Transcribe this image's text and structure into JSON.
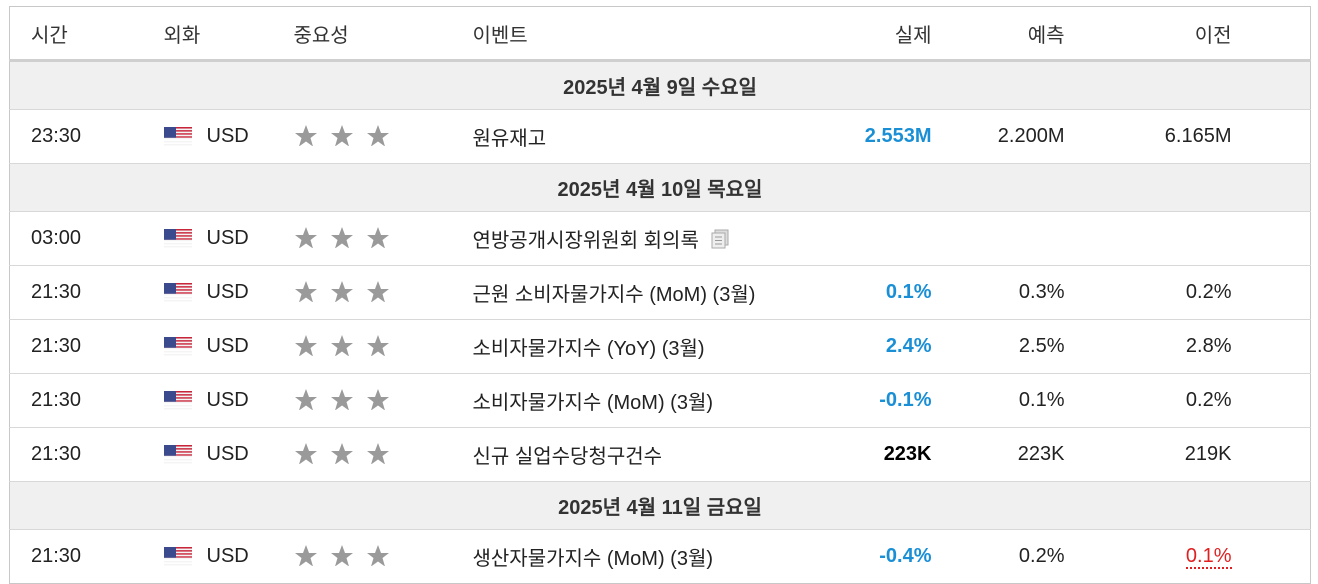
{
  "header": {
    "columns": [
      "시간",
      "외화",
      "중요성",
      "이벤트",
      "실제",
      "예측",
      "이전"
    ]
  },
  "groups": [
    {
      "date": "2025년 4월 9일 수요일",
      "events": [
        {
          "time": "23:30",
          "currency": "USD",
          "event": "원유재고",
          "actual": "2.553M",
          "actual_color": "#1a8fd6",
          "forecast": "2.200M",
          "previous": "6.165M"
        }
      ]
    },
    {
      "date": "2025년 4월 10일 목요일",
      "events": [
        {
          "time": "03:00",
          "currency": "USD",
          "event": "연방공개시장위원회 회의록",
          "document_icon": true
        },
        {
          "time": "21:30",
          "currency": "USD",
          "event": "근원 소비자물가지수 (MoM) (3월)",
          "actual": "0.1%",
          "actual_color": "#1a8fd6",
          "forecast": "0.3%",
          "previous": "0.2%"
        },
        {
          "time": "21:30",
          "currency": "USD",
          "event": "소비자물가지수 (YoY) (3월)",
          "actual": "2.4%",
          "actual_color": "#1a8fd6",
          "forecast": "2.5%",
          "previous": "2.8%"
        },
        {
          "time": "21:30",
          "currency": "USD",
          "event": "소비자물가지수 (MoM) (3월)",
          "actual": "-0.1%",
          "actual_color": "#1a8fd6",
          "forecast": "0.1%",
          "previous": "0.2%"
        },
        {
          "time": "21:30",
          "currency": "USD",
          "event": "신규 실업수당청구건수",
          "actual": "223K",
          "actual_color": "#000000",
          "forecast": "223K",
          "previous": "219K"
        }
      ]
    },
    {
      "date": "2025년 4월 11일 금요일",
      "events": [
        {
          "time": "21:30",
          "currency": "USD",
          "event": "생산자물가지수 (MoM) (3월)",
          "actual": "-0.4%",
          "actual_color": "#1a8fd6",
          "forecast": "0.2%",
          "previous": "0.1%",
          "previous_color": "#e02020"
        }
      ]
    }
  ]
}
